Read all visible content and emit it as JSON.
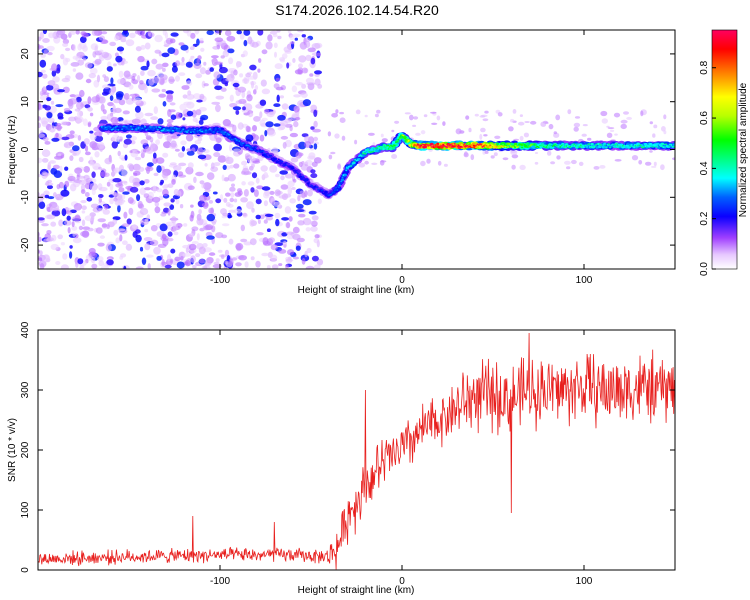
{
  "title": "S174.2026.102.14.54.R20",
  "colors": {
    "snr_line": "#e8201e",
    "axis": "#000000",
    "background": "#ffffff"
  },
  "chart_data": [
    {
      "type": "heatmap",
      "name": "spectrogram",
      "xlabel": "Height of straight line (km)",
      "ylabel": "Frequency (Hz)",
      "xlim": [
        -200,
        150
      ],
      "ylim": [
        -25,
        25
      ],
      "xticks": [
        -100,
        0,
        100
      ],
      "yticks": [
        -20,
        -10,
        0,
        10,
        20
      ],
      "colorbar": {
        "label": "Normalized spectral amplitude",
        "range": [
          0,
          0.95
        ],
        "ticks": [
          0,
          0.2,
          0.4,
          0.6,
          0.8
        ],
        "tick_labels": [
          "0.0",
          "0.2",
          "0.4",
          "0.6",
          "0.8"
        ]
      },
      "dominant_ridge": {
        "x": [
          -160,
          -140,
          -120,
          -100,
          -90,
          -80,
          -70,
          -60,
          -50,
          -45,
          -40,
          -35,
          -30,
          -20,
          -10,
          -5,
          0,
          5,
          10,
          20,
          40,
          60,
          80,
          100,
          120,
          150
        ],
        "y": [
          4.5,
          4.5,
          4.0,
          4.0,
          1.5,
          0.0,
          -2.0,
          -4.0,
          -7.5,
          -8.5,
          -9.5,
          -8.0,
          -4.0,
          -0.5,
          0.5,
          0.5,
          3.0,
          1.0,
          0.8,
          0.8,
          0.8,
          0.8,
          0.8,
          0.8,
          0.8,
          0.8
        ],
        "amplitude": [
          0.3,
          0.3,
          0.3,
          0.3,
          0.28,
          0.25,
          0.22,
          0.22,
          0.22,
          0.22,
          0.25,
          0.3,
          0.35,
          0.4,
          0.45,
          0.5,
          0.55,
          0.65,
          0.95,
          0.95,
          0.92,
          0.6,
          0.45,
          0.4,
          0.4,
          0.4
        ]
      },
      "noise_region_x": [
        -200,
        -45
      ]
    },
    {
      "type": "line",
      "name": "snr",
      "xlabel": "Height of straight line (km)",
      "ylabel": "SNR (10 * v/v)",
      "xlim": [
        -200,
        150
      ],
      "ylim": [
        0,
        400
      ],
      "xticks": [
        -100,
        0,
        100
      ],
      "yticks": [
        0,
        100,
        200,
        300,
        400
      ],
      "trend": {
        "x": [
          -200,
          -150,
          -100,
          -60,
          -40,
          -35,
          -30,
          -20,
          -10,
          0,
          10,
          20,
          30,
          40,
          50,
          60,
          70,
          80,
          90,
          100,
          110,
          120,
          130,
          140,
          150
        ],
        "y": [
          18,
          22,
          25,
          25,
          22,
          40,
          90,
          140,
          180,
          200,
          230,
          250,
          270,
          290,
          290,
          285,
          300,
          300,
          300,
          305,
          300,
          300,
          305,
          300,
          305
        ]
      },
      "spikes": [
        {
          "x": -115,
          "y": 90
        },
        {
          "x": -70,
          "y": 80
        },
        {
          "x": -20,
          "y": 300
        },
        {
          "x": 60,
          "y": 95
        },
        {
          "x": 70,
          "y": 395
        }
      ]
    }
  ]
}
